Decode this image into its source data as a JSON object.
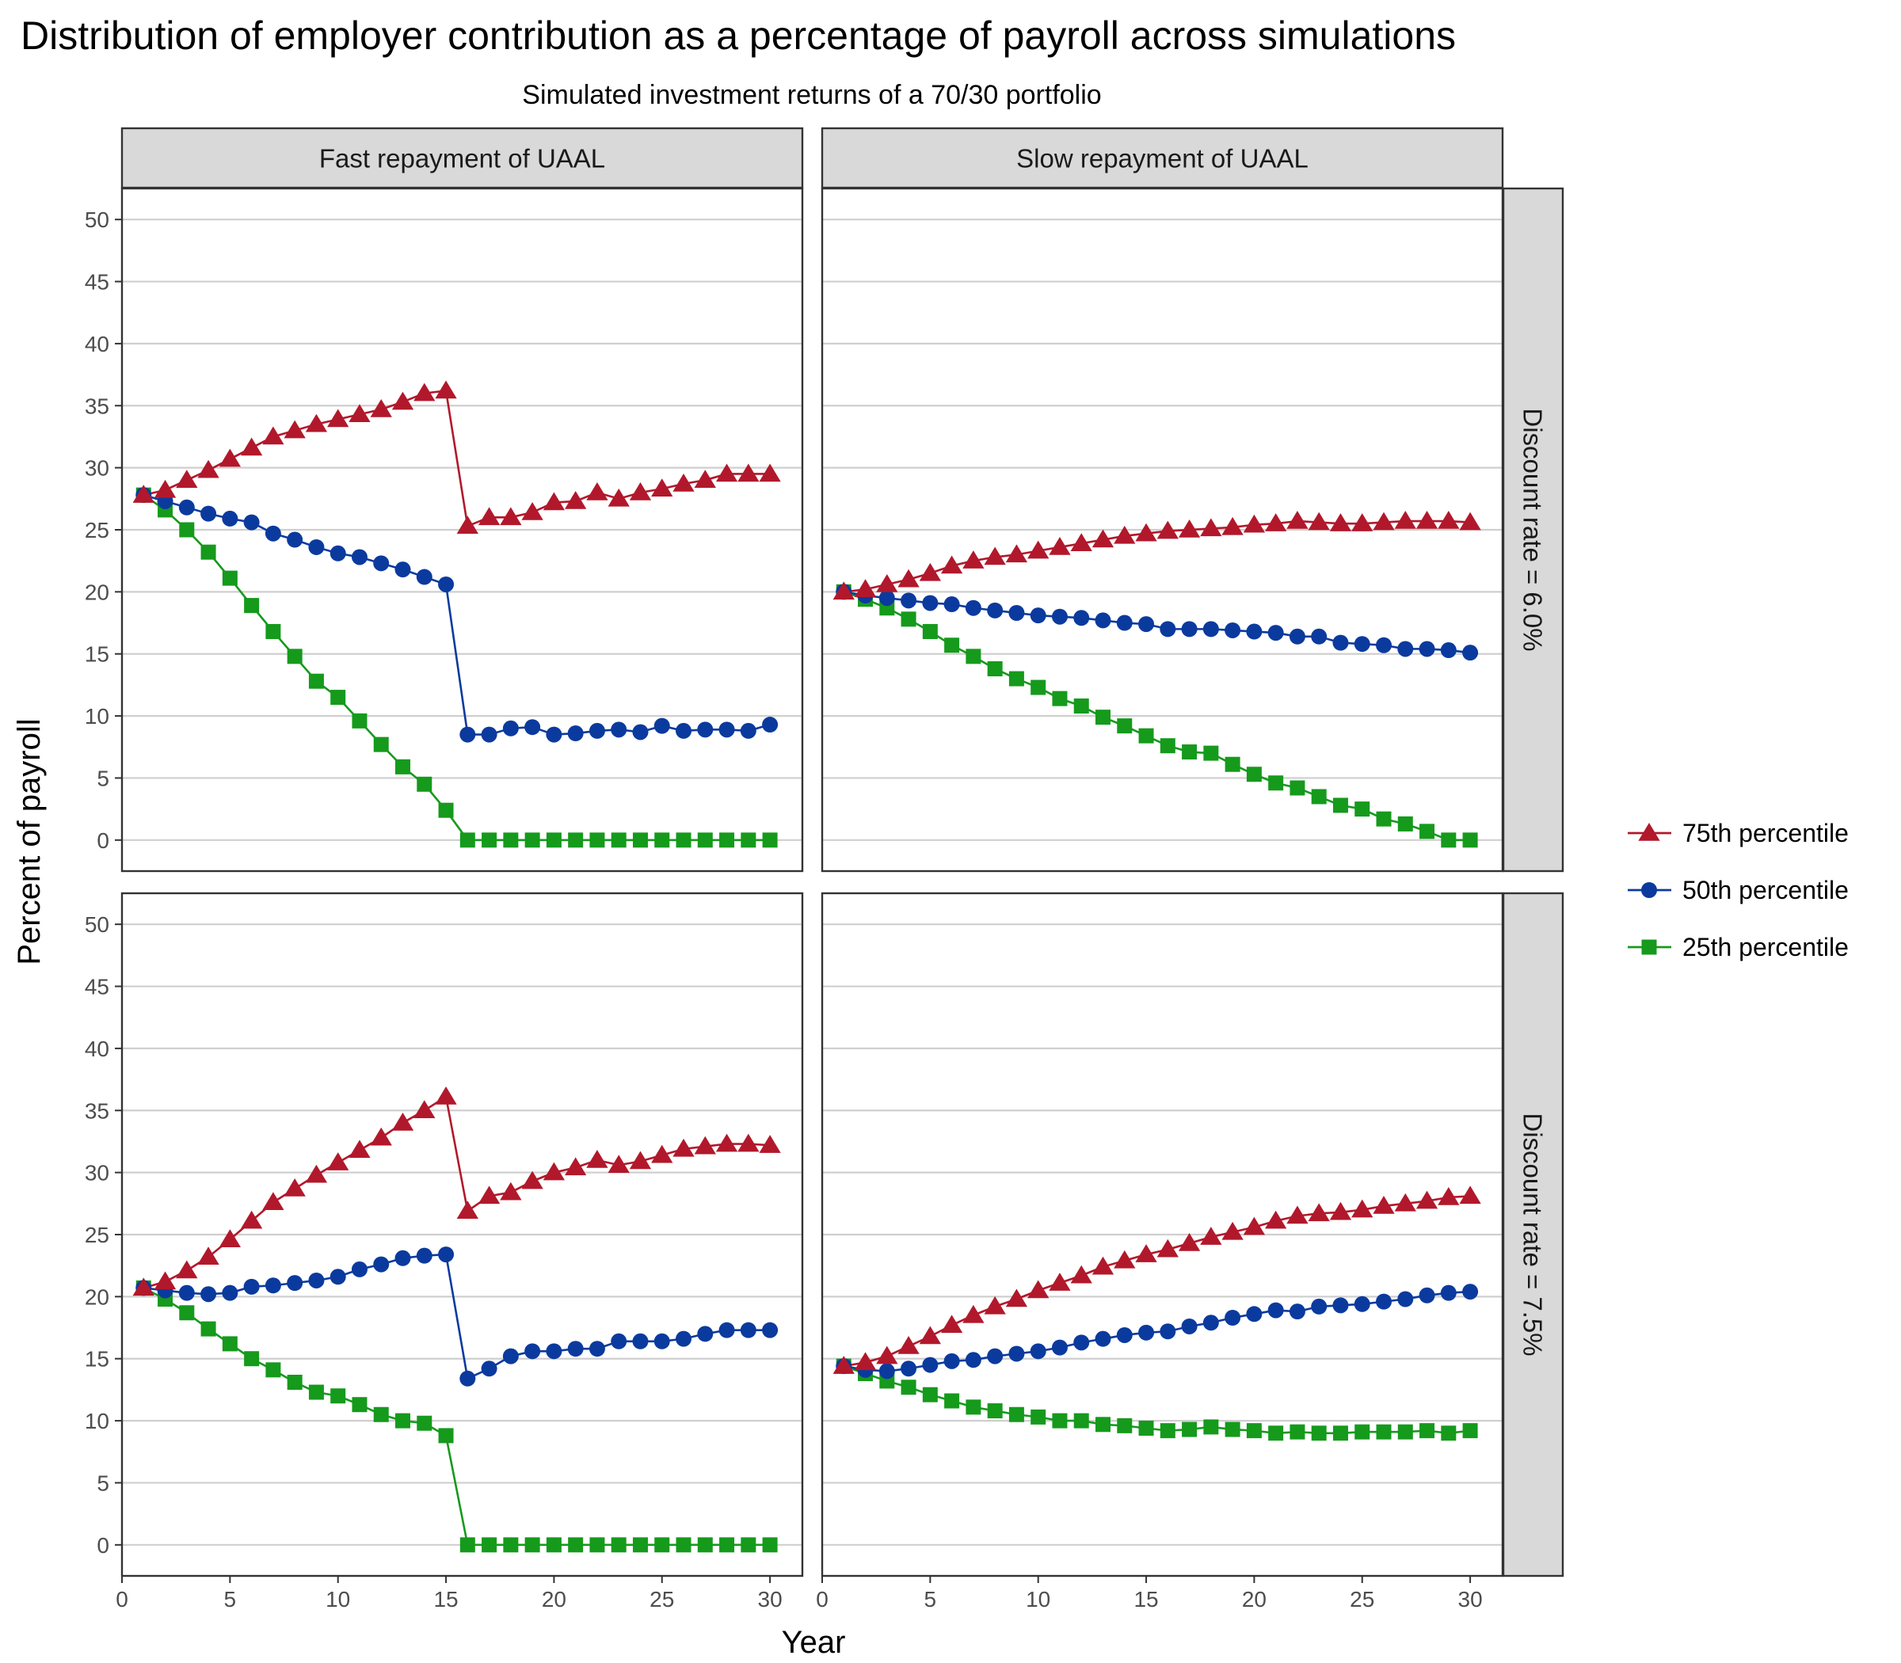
{
  "chart_data": {
    "type": "line",
    "title": "Distribution of employer contribution as a percentage of payroll across simulations",
    "subtitle": "Simulated investment returns of a 70/30 portfolio",
    "xlabel": "Year",
    "ylabel": "Percent of payroll",
    "xlim": [
      0,
      31.5
    ],
    "ylim": [
      -2.5,
      52.5
    ],
    "xticks": [
      0,
      5,
      10,
      15,
      20,
      25,
      30
    ],
    "yticks": [
      0,
      5,
      10,
      15,
      20,
      25,
      30,
      35,
      40,
      45,
      50
    ],
    "grid": "horizontal",
    "legend_position": "right",
    "col_labels": [
      "Fast repayment of UAAL",
      "Slow repayment of UAAL"
    ],
    "row_labels": [
      "Discount rate = 6.0%",
      "Discount rate = 7.5%"
    ],
    "x": [
      1,
      2,
      3,
      4,
      5,
      6,
      7,
      8,
      9,
      10,
      11,
      12,
      13,
      14,
      15,
      16,
      17,
      18,
      19,
      20,
      21,
      22,
      23,
      24,
      25,
      26,
      27,
      28,
      29,
      30
    ],
    "legend": [
      {
        "name": "75th percentile",
        "color": "#b2182b",
        "marker": "triangle"
      },
      {
        "name": "50th percentile",
        "color": "#0b3a9e",
        "marker": "circle"
      },
      {
        "name": "25th percentile",
        "color": "#159a1c",
        "marker": "square"
      }
    ],
    "panels": [
      {
        "row": 0,
        "col": 0,
        "series": [
          {
            "name": "75th percentile",
            "values": [
              27.8,
              28.2,
              29.0,
              29.8,
              30.7,
              31.6,
              32.5,
              33.0,
              33.5,
              33.9,
              34.3,
              34.7,
              35.3,
              36.0,
              36.2,
              25.3,
              26.0,
              26.0,
              26.4,
              27.2,
              27.3,
              28.0,
              27.5,
              28.0,
              28.3,
              28.7,
              29.0,
              29.5,
              29.5,
              29.5
            ]
          },
          {
            "name": "50th percentile",
            "values": [
              27.8,
              27.3,
              26.8,
              26.3,
              25.9,
              25.6,
              24.7,
              24.2,
              23.6,
              23.1,
              22.8,
              22.3,
              21.8,
              21.2,
              20.6,
              8.5,
              8.5,
              9.0,
              9.1,
              8.5,
              8.6,
              8.8,
              8.9,
              8.7,
              9.2,
              8.8,
              8.9,
              8.9,
              8.8,
              9.3
            ]
          },
          {
            "name": "25th percentile",
            "values": [
              27.8,
              26.6,
              25.0,
              23.2,
              21.1,
              18.9,
              16.8,
              14.8,
              12.8,
              11.5,
              9.6,
              7.7,
              5.9,
              4.5,
              2.4,
              0,
              0,
              0,
              0,
              0,
              0,
              0,
              0,
              0,
              0,
              0,
              0,
              0,
              0,
              0
            ]
          }
        ]
      },
      {
        "row": 0,
        "col": 1,
        "series": [
          {
            "name": "75th percentile",
            "values": [
              20.0,
              20.2,
              20.6,
              21.0,
              21.5,
              22.1,
              22.5,
              22.8,
              23.0,
              23.3,
              23.6,
              23.9,
              24.2,
              24.5,
              24.7,
              24.9,
              25.0,
              25.1,
              25.2,
              25.4,
              25.5,
              25.7,
              25.6,
              25.5,
              25.5,
              25.6,
              25.7,
              25.7,
              25.7,
              25.6
            ]
          },
          {
            "name": "50th percentile",
            "values": [
              20.0,
              19.7,
              19.5,
              19.3,
              19.1,
              19.0,
              18.7,
              18.5,
              18.3,
              18.1,
              18.0,
              17.9,
              17.7,
              17.5,
              17.4,
              17.0,
              17.0,
              17.0,
              16.9,
              16.8,
              16.7,
              16.4,
              16.4,
              15.9,
              15.8,
              15.7,
              15.4,
              15.4,
              15.3,
              15.1
            ]
          },
          {
            "name": "25th percentile",
            "values": [
              20.0,
              19.4,
              18.7,
              17.8,
              16.8,
              15.7,
              14.8,
              13.8,
              13.0,
              12.3,
              11.4,
              10.8,
              9.9,
              9.2,
              8.4,
              7.6,
              7.1,
              7.0,
              6.1,
              5.3,
              4.6,
              4.2,
              3.5,
              2.8,
              2.5,
              1.7,
              1.3,
              0.7,
              0,
              0
            ]
          }
        ]
      },
      {
        "row": 1,
        "col": 0,
        "series": [
          {
            "name": "75th percentile",
            "values": [
              20.7,
              21.2,
              22.1,
              23.2,
              24.6,
              26.1,
              27.6,
              28.7,
              29.8,
              30.8,
              31.8,
              32.8,
              34.0,
              35.0,
              36.1,
              26.9,
              28.1,
              28.4,
              29.3,
              30.0,
              30.4,
              31.0,
              30.6,
              30.9,
              31.4,
              31.9,
              32.1,
              32.3,
              32.3,
              32.2
            ]
          },
          {
            "name": "50th percentile",
            "values": [
              20.7,
              20.5,
              20.3,
              20.2,
              20.3,
              20.8,
              20.9,
              21.1,
              21.3,
              21.6,
              22.2,
              22.6,
              23.1,
              23.3,
              23.4,
              13.4,
              14.2,
              15.2,
              15.6,
              15.6,
              15.8,
              15.8,
              16.4,
              16.4,
              16.4,
              16.6,
              17.0,
              17.3,
              17.3,
              17.3
            ]
          },
          {
            "name": "25th percentile",
            "values": [
              20.7,
              19.8,
              18.7,
              17.4,
              16.2,
              15.0,
              14.1,
              13.1,
              12.3,
              12.0,
              11.3,
              10.5,
              10.0,
              9.8,
              8.8,
              0,
              0,
              0,
              0,
              0,
              0,
              0,
              0,
              0,
              0,
              0,
              0,
              0,
              0,
              0
            ]
          }
        ]
      },
      {
        "row": 1,
        "col": 1,
        "series": [
          {
            "name": "75th percentile",
            "values": [
              14.4,
              14.7,
              15.2,
              16.0,
              16.8,
              17.7,
              18.5,
              19.2,
              19.8,
              20.5,
              21.1,
              21.7,
              22.4,
              22.9,
              23.4,
              23.8,
              24.3,
              24.8,
              25.2,
              25.6,
              26.1,
              26.5,
              26.7,
              26.8,
              27.0,
              27.3,
              27.5,
              27.7,
              28.0,
              28.1
            ]
          },
          {
            "name": "50th percentile",
            "values": [
              14.4,
              14.1,
              14.0,
              14.2,
              14.5,
              14.8,
              14.9,
              15.2,
              15.4,
              15.6,
              15.9,
              16.3,
              16.6,
              16.9,
              17.1,
              17.2,
              17.6,
              17.9,
              18.3,
              18.6,
              18.9,
              18.8,
              19.2,
              19.3,
              19.4,
              19.6,
              19.8,
              20.1,
              20.3,
              20.4
            ]
          },
          {
            "name": "25th percentile",
            "values": [
              14.4,
              13.8,
              13.2,
              12.7,
              12.1,
              11.6,
              11.1,
              10.8,
              10.5,
              10.3,
              10.0,
              10.0,
              9.7,
              9.6,
              9.4,
              9.2,
              9.3,
              9.5,
              9.3,
              9.2,
              9.0,
              9.1,
              9.0,
              9.0,
              9.1,
              9.1,
              9.1,
              9.2,
              9.0,
              9.2
            ]
          }
        ]
      }
    ]
  }
}
